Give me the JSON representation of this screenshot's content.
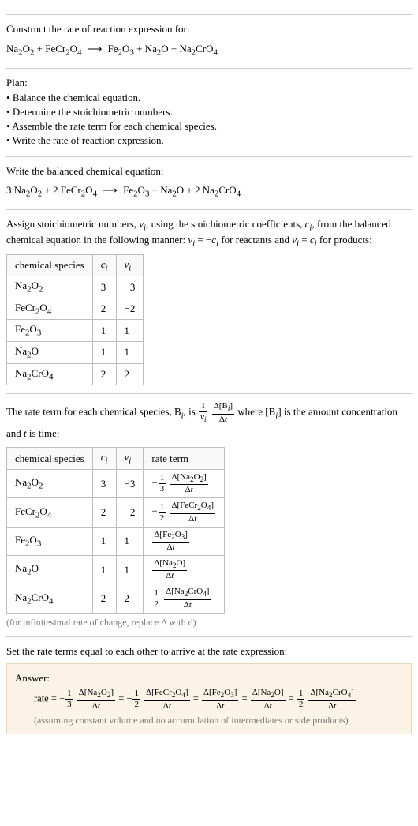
{
  "intro": {
    "prompt": "Construct the rate of reaction expression for:",
    "equation_html": "Na<sub>2</sub>O<sub>2</sub> + FeCr<sub>2</sub>O<sub>4</sub> <span class='arrow'>⟶</span> Fe<sub>2</sub>O<sub>3</sub> + Na<sub>2</sub>O + Na<sub>2</sub>CrO<sub>4</sub>"
  },
  "plan": {
    "title": "Plan:",
    "items": [
      "Balance the chemical equation.",
      "Determine the stoichiometric numbers.",
      "Assemble the rate term for each chemical species.",
      "Write the rate of reaction expression."
    ]
  },
  "balanced": {
    "title": "Write the balanced chemical equation:",
    "equation_html": "3 Na<sub>2</sub>O<sub>2</sub> + 2 FeCr<sub>2</sub>O<sub>4</sub> <span class='arrow'>⟶</span> Fe<sub>2</sub>O<sub>3</sub> + Na<sub>2</sub>O + 2 Na<sub>2</sub>CrO<sub>4</sub>"
  },
  "assign": {
    "text_html": "Assign stoichiometric numbers, <span class='it'>ν<sub>i</sub></span>, using the stoichiometric coefficients, <span class='it'>c<sub>i</sub></span>, from the balanced chemical equation in the following manner: <span class='it'>ν<sub>i</sub></span> = −<span class='it'>c<sub>i</sub></span> for reactants and <span class='it'>ν<sub>i</sub></span> = <span class='it'>c<sub>i</sub></span> for products:"
  },
  "table1": {
    "headers": [
      "chemical species",
      "c_i",
      "ν_i"
    ],
    "header1_html": "<span class='it'>c<sub>i</sub></span>",
    "header2_html": "<span class='it'>ν<sub>i</sub></span>",
    "rows": [
      {
        "species_html": "Na<sub>2</sub>O<sub>2</sub>",
        "c": "3",
        "v": "−3"
      },
      {
        "species_html": "FeCr<sub>2</sub>O<sub>4</sub>",
        "c": "2",
        "v": "−2"
      },
      {
        "species_html": "Fe<sub>2</sub>O<sub>3</sub>",
        "c": "1",
        "v": "1"
      },
      {
        "species_html": "Na<sub>2</sub>O",
        "c": "1",
        "v": "1"
      },
      {
        "species_html": "Na<sub>2</sub>CrO<sub>4</sub>",
        "c": "2",
        "v": "2"
      }
    ]
  },
  "rateterm": {
    "text_html": "The rate term for each chemical species, B<sub><span class='it'>i</span></sub>, is <span class='frac'><span class='fn'>1</span><span class='fd'><span class='it'>ν<sub>i</sub></span></span></span> <span class='frac'><span class='fn'>Δ[B<sub><span class='it'>i</span></sub>]</span><span class='fd'>Δ<span class='it'>t</span></span></span> where [B<sub><span class='it'>i</span></sub>] is the amount concentration and <span class='it'>t</span> is time:"
  },
  "table2": {
    "headers": [
      "chemical species",
      "c_i",
      "ν_i",
      "rate term"
    ],
    "rows": [
      {
        "species_html": "Na<sub>2</sub>O<sub>2</sub>",
        "c": "3",
        "v": "−3",
        "rate_html": "−<span class='frac'><span class='fn'>1</span><span class='fd'>3</span></span> <span class='frac'><span class='fn'>Δ[Na<sub>2</sub>O<sub>2</sub>]</span><span class='fd'>Δ<span class='it'>t</span></span></span>"
      },
      {
        "species_html": "FeCr<sub>2</sub>O<sub>4</sub>",
        "c": "2",
        "v": "−2",
        "rate_html": "−<span class='frac'><span class='fn'>1</span><span class='fd'>2</span></span> <span class='frac'><span class='fn'>Δ[FeCr<sub>2</sub>O<sub>4</sub>]</span><span class='fd'>Δ<span class='it'>t</span></span></span>"
      },
      {
        "species_html": "Fe<sub>2</sub>O<sub>3</sub>",
        "c": "1",
        "v": "1",
        "rate_html": "<span class='frac'><span class='fn'>Δ[Fe<sub>2</sub>O<sub>3</sub>]</span><span class='fd'>Δ<span class='it'>t</span></span></span>"
      },
      {
        "species_html": "Na<sub>2</sub>O",
        "c": "1",
        "v": "1",
        "rate_html": "<span class='frac'><span class='fn'>Δ[Na<sub>2</sub>O]</span><span class='fd'>Δ<span class='it'>t</span></span></span>"
      },
      {
        "species_html": "Na<sub>2</sub>CrO<sub>4</sub>",
        "c": "2",
        "v": "2",
        "rate_html": "<span class='frac'><span class='fn'>1</span><span class='fd'>2</span></span> <span class='frac'><span class='fn'>Δ[Na<sub>2</sub>CrO<sub>4</sub>]</span><span class='fd'>Δ<span class='it'>t</span></span></span>"
      }
    ],
    "note": "(for infinitesimal rate of change, replace Δ with d)"
  },
  "final": {
    "title": "Set the rate terms equal to each other to arrive at the rate expression:",
    "answer_label": "Answer:",
    "answer_html": "rate = −<span class='frac'><span class='fn'>1</span><span class='fd'>3</span></span> <span class='frac'><span class='fn'>Δ[Na<sub>2</sub>O<sub>2</sub>]</span><span class='fd'>Δ<span class='it'>t</span></span></span> = −<span class='frac'><span class='fn'>1</span><span class='fd'>2</span></span> <span class='frac'><span class='fn'>Δ[FeCr<sub>2</sub>O<sub>4</sub>]</span><span class='fd'>Δ<span class='it'>t</span></span></span> = <span class='frac'><span class='fn'>Δ[Fe<sub>2</sub>O<sub>3</sub>]</span><span class='fd'>Δ<span class='it'>t</span></span></span> = <span class='frac'><span class='fn'>Δ[Na<sub>2</sub>O]</span><span class='fd'>Δ<span class='it'>t</span></span></span> = <span class='frac'><span class='fn'>1</span><span class='fd'>2</span></span> <span class='frac'><span class='fn'>Δ[Na<sub>2</sub>CrO<sub>4</sub>]</span><span class='fd'>Δ<span class='it'>t</span></span></span>",
    "answer_note": "(assuming constant volume and no accumulation of intermediates or side products)"
  },
  "colors": {
    "border": "#bdbdbd",
    "answer_bg": "#fbf4e6",
    "answer_border": "#e6d9b8",
    "note_color": "#7a7a7a"
  }
}
